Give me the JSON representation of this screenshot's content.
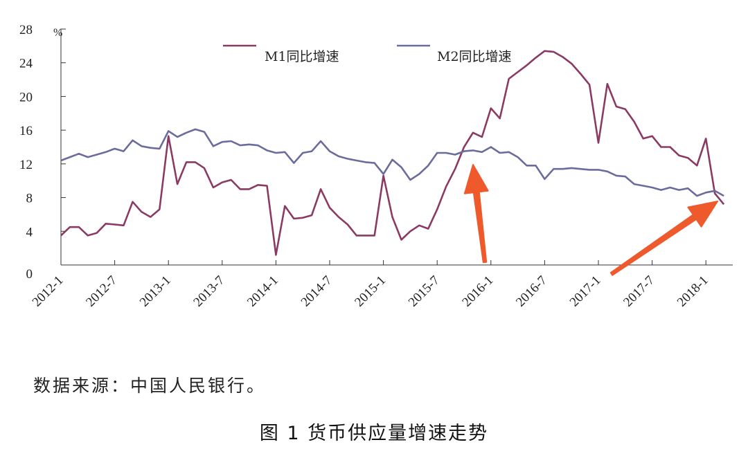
{
  "chart_data": {
    "type": "line",
    "unit": "%",
    "ylim": [
      0,
      28
    ],
    "yticks": [
      0,
      4,
      8,
      12,
      16,
      20,
      24,
      28
    ],
    "x_tick_labels": [
      "2012-1",
      "2012-7",
      "2013-1",
      "2013-7",
      "2014-1",
      "2014-7",
      "2015-1",
      "2015-7",
      "2016-1",
      "2016-7",
      "2017-1",
      "2017-7",
      "2018-1"
    ],
    "legend": {
      "placement": "top"
    },
    "grid": false,
    "series": [
      {
        "name": "M1同比增速",
        "color": "#8a3a63",
        "values": [
          3.5,
          4.5,
          4.5,
          3.5,
          3.8,
          4.9,
          4.8,
          4.7,
          7.5,
          6.3,
          5.7,
          6.6,
          15.3,
          9.6,
          12.2,
          12.2,
          11.5,
          9.2,
          9.8,
          10.1,
          9.0,
          9.0,
          9.5,
          9.4,
          1.2,
          7.0,
          5.5,
          5.6,
          5.9,
          9.0,
          6.8,
          5.7,
          4.8,
          3.5,
          3.5,
          3.5,
          10.6,
          5.7,
          3.0,
          4.0,
          4.7,
          4.3,
          6.6,
          9.3,
          11.4,
          14.0,
          15.7,
          15.2,
          18.6,
          17.4,
          22.1,
          22.9,
          23.7,
          24.6,
          25.4,
          25.3,
          24.7,
          23.9,
          22.7,
          21.4,
          14.5,
          21.5,
          18.8,
          18.5,
          17.0,
          15.0,
          15.3,
          14.0,
          14.0,
          13.0,
          12.7,
          11.8,
          15.0,
          8.5,
          7.2
        ]
      },
      {
        "name": "M2同比增速",
        "color": "#6a6c9c",
        "values": [
          12.4,
          12.8,
          13.2,
          12.8,
          13.1,
          13.4,
          13.8,
          13.5,
          14.8,
          14.1,
          13.9,
          13.8,
          15.9,
          15.2,
          15.7,
          16.1,
          15.8,
          14.1,
          14.6,
          14.7,
          14.2,
          14.3,
          14.2,
          13.6,
          13.3,
          13.4,
          12.1,
          13.3,
          13.5,
          14.7,
          13.5,
          12.9,
          12.6,
          12.4,
          12.2,
          12.1,
          10.8,
          12.5,
          11.6,
          10.1,
          10.8,
          11.8,
          13.3,
          13.3,
          13.1,
          13.5,
          13.6,
          13.4,
          14.0,
          13.3,
          13.4,
          12.8,
          11.8,
          11.8,
          10.2,
          11.4,
          11.4,
          11.5,
          11.4,
          11.3,
          11.3,
          11.1,
          10.6,
          10.5,
          9.6,
          9.4,
          9.2,
          8.9,
          9.2,
          8.9,
          9.1,
          8.2,
          8.6,
          8.8,
          8.2
        ]
      }
    ]
  },
  "source_text": "数据来源：中国人民银行。",
  "caption": "图 1 货币供应量增速走势",
  "annotation_colors": {
    "arrow": "#ee5a2c"
  }
}
